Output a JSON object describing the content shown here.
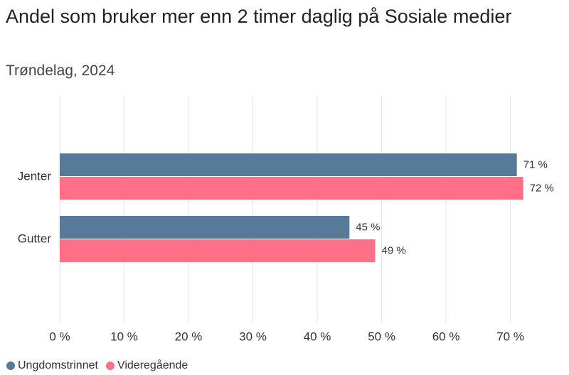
{
  "chart_data": {
    "type": "hbar",
    "title": "Andel som bruker mer enn 2 timer daglig på Sosiale medier",
    "subtitle": "Trøndelag, 2024",
    "categories": [
      "Jenter",
      "Gutter"
    ],
    "series": [
      {
        "name": "Ungdomstrinnet",
        "color": "#587a99",
        "values": [
          71,
          45
        ],
        "value_labels": [
          "71 %",
          "45 %"
        ]
      },
      {
        "name": "Videregående",
        "color": "#ff6f87",
        "values": [
          72,
          49
        ],
        "value_labels": [
          "72 %",
          "49 %"
        ]
      }
    ],
    "xlim": [
      0,
      78
    ],
    "xticks": [
      {
        "value": 0,
        "label": "0 %"
      },
      {
        "value": 10,
        "label": "10 %"
      },
      {
        "value": 20,
        "label": "20 %"
      },
      {
        "value": 30,
        "label": "30 %"
      },
      {
        "value": 40,
        "label": "40 %"
      },
      {
        "value": 50,
        "label": "50 %"
      },
      {
        "value": 60,
        "label": "60 %"
      },
      {
        "value": 70,
        "label": "70 %"
      }
    ],
    "grid": true
  }
}
